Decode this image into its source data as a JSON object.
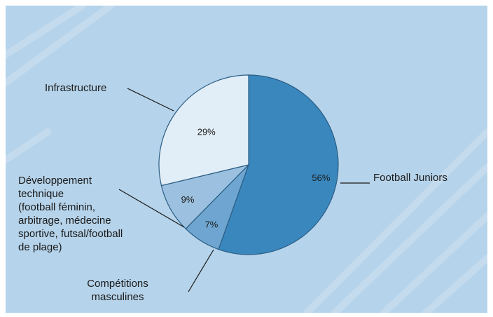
{
  "chart_data": {
    "type": "pie",
    "slices": [
      {
        "label": "Football Juniors",
        "label_lines": [
          "Football Juniors"
        ],
        "value": 56,
        "pct_label": "56%",
        "color": "#3a87be"
      },
      {
        "label": "Compétitions masculines",
        "label_lines": [
          "Compétitions",
          "masculines"
        ],
        "value": 7,
        "pct_label": "7%",
        "color": "#6ea6d1"
      },
      {
        "label": "Développement technique (football féminin, arbitrage, médecine sportive, futsal/football de plage)",
        "label_lines": [
          "Développement",
          "technique",
          "(football féminin,",
          "arbitrage, médecine",
          "sportive, futsal/football",
          "de plage)"
        ],
        "value": 9,
        "pct_label": "9%",
        "color": "#9cc0df"
      },
      {
        "label": "Infrastructure",
        "label_lines": [
          "Infrastructure"
        ],
        "value": 29,
        "pct_label": "29%",
        "color": "#e2eef7"
      }
    ],
    "start_angle": "12 o'clock",
    "direction": "clockwise",
    "colors": {
      "background": "#b5d3ea",
      "stroke": "#2b5e85",
      "leader": "#1a1a1a"
    }
  }
}
